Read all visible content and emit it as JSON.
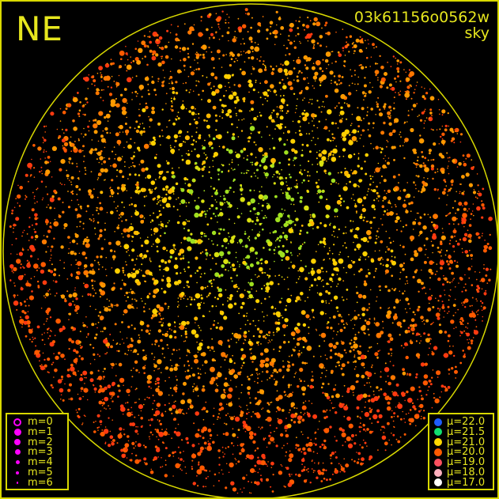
{
  "header": {
    "direction": "NE",
    "frame_id": "03k61156o0562w",
    "mode": "sky"
  },
  "magnitude_legend": {
    "color": "#ff00ff",
    "items": [
      {
        "label": "m=0",
        "style": "ring"
      },
      {
        "label": "m=1"
      },
      {
        "label": "m=2"
      },
      {
        "label": "m=3"
      },
      {
        "label": "m=4"
      },
      {
        "label": "m=5"
      },
      {
        "label": "m=6"
      }
    ]
  },
  "brightness_legend": {
    "items": [
      {
        "label": "μ=22.0",
        "color": "#1e5cff"
      },
      {
        "label": "μ=21.5",
        "color": "#10e070"
      },
      {
        "label": "μ=21.0",
        "color": "#ffd800"
      },
      {
        "label": "μ=20.0",
        "color": "#ff5a00"
      },
      {
        "label": "μ=19.0",
        "color": "#ff5060"
      },
      {
        "label": "μ=18.0",
        "color": "#ffb0c0"
      },
      {
        "label": "μ=17.0",
        "color": "#ffffff"
      }
    ]
  },
  "colors": {
    "frame": "#d8d800",
    "horizon": "#d8d800",
    "background": "#000000"
  }
}
